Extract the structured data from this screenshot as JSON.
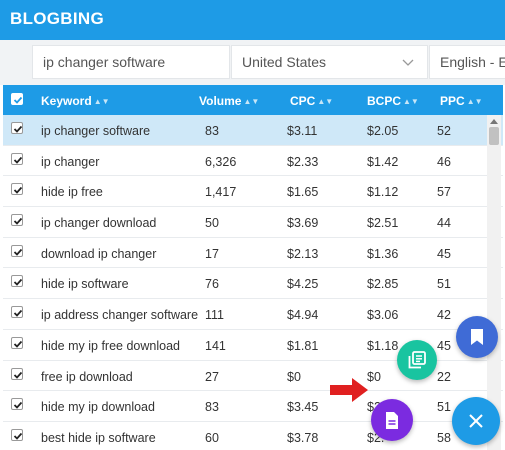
{
  "brand": "BLOGBING",
  "search": {
    "keyword": "ip changer software",
    "country": "United States",
    "language": "English - En"
  },
  "table": {
    "headers": {
      "keyword": "Keyword",
      "volume": "Volume",
      "cpc": "CPC",
      "bcpc": "BCPC",
      "ppc": "PPC"
    },
    "rows": [
      {
        "keyword": "ip changer software",
        "volume": "83",
        "cpc": "$3.11",
        "bcpc": "$2.05",
        "ppc": "52"
      },
      {
        "keyword": "ip changer",
        "volume": "6,326",
        "cpc": "$2.33",
        "bcpc": "$1.42",
        "ppc": "46"
      },
      {
        "keyword": "hide ip free",
        "volume": "1,417",
        "cpc": "$1.65",
        "bcpc": "$1.12",
        "ppc": "57"
      },
      {
        "keyword": "ip changer download",
        "volume": "50",
        "cpc": "$3.69",
        "bcpc": "$2.51",
        "ppc": "44"
      },
      {
        "keyword": "download ip changer",
        "volume": "17",
        "cpc": "$2.13",
        "bcpc": "$1.36",
        "ppc": "45"
      },
      {
        "keyword": "hide ip software",
        "volume": "76",
        "cpc": "$4.25",
        "bcpc": "$2.85",
        "ppc": "51"
      },
      {
        "keyword": "ip address changer software",
        "volume": "111",
        "cpc": "$4.94",
        "bcpc": "$3.06",
        "ppc": "42"
      },
      {
        "keyword": "hide my ip free download",
        "volume": "141",
        "cpc": "$1.81",
        "bcpc": "$1.18",
        "ppc": "45"
      },
      {
        "keyword": "free ip download",
        "volume": "27",
        "cpc": "$0",
        "bcpc": "$0",
        "ppc": "22"
      },
      {
        "keyword": "hide my ip download",
        "volume": "83",
        "cpc": "$3.45",
        "bcpc": "$2.",
        "ppc": "51"
      },
      {
        "keyword": "best hide ip software",
        "volume": "60",
        "cpc": "$3.78",
        "bcpc": "$2.",
        "ppc": "58"
      }
    ]
  },
  "colors": {
    "header_blue": "#1e9be6",
    "selected_row": "#cfe8f8",
    "bookmark_fab": "#3f6bd6",
    "notes_fab": "#19c4a0",
    "doc_fab": "#7b2be0",
    "arrow": "#e02020"
  },
  "icons": {
    "fab_bookmark": "bookmark-icon",
    "fab_notes": "notes-icon",
    "fab_doc": "document-icon",
    "fab_close": "close-icon",
    "country_dropdown": "chevron-down-icon"
  }
}
